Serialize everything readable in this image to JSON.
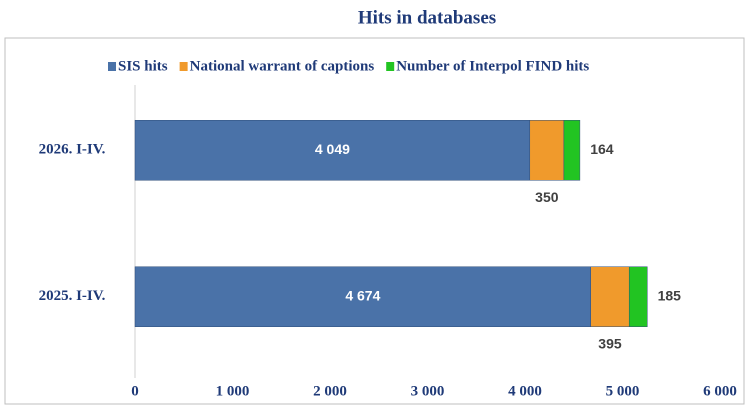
{
  "chart_data": {
    "type": "stacked-bar-horizontal",
    "title": "Hits in databases",
    "categories": [
      "2026. I-IV.",
      "2025. I-IV."
    ],
    "series": [
      {
        "name": "SIS hits",
        "color": "#4a72a8",
        "values": [
          4049,
          4674
        ],
        "value_labels": [
          "4 049",
          "4 674"
        ]
      },
      {
        "name": "National warrant of captions",
        "color": "#f09a2c",
        "values": [
          350,
          395
        ]
      },
      {
        "name": "Number of Interpol FIND hits",
        "color": "#22c422",
        "values": [
          164,
          185
        ]
      }
    ],
    "xlim": [
      0,
      6000
    ],
    "xticks": [
      0,
      {
        "value": 1000,
        "label": "1 000"
      },
      {
        "value": 2000,
        "label": "2 000"
      },
      {
        "value": 3000,
        "label": "3 000"
      },
      {
        "value": 4000,
        "label": "4 000"
      },
      {
        "value": 5000,
        "label": "5 000"
      },
      {
        "value": 6000,
        "label": "6 000"
      }
    ],
    "legend": "top"
  }
}
